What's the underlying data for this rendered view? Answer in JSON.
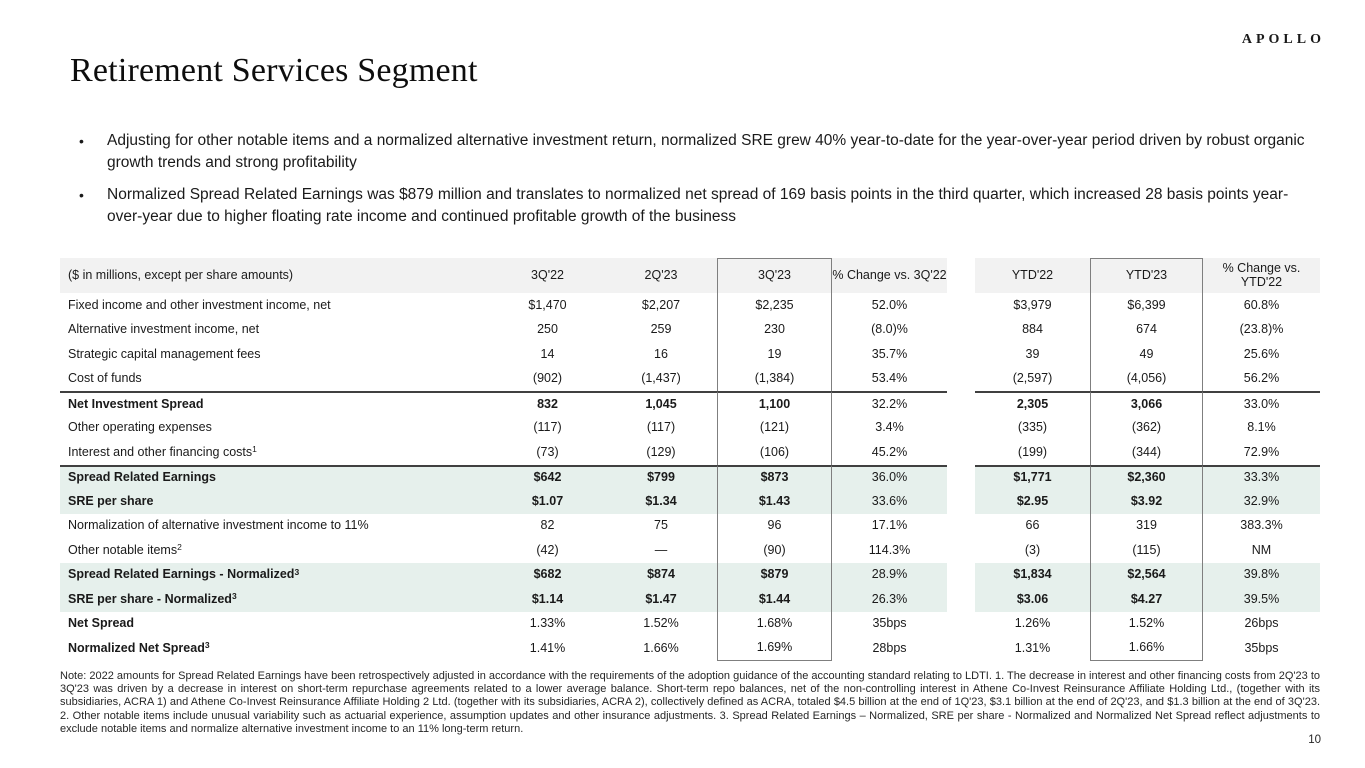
{
  "logo": "APOLLO",
  "title": "Retirement Services Segment",
  "bullet_char": "•",
  "bullets": [
    "Adjusting for other notable items and a normalized alternative investment return, normalized SRE grew 40% year-to-date for the year-over-year period driven by robust organic growth trends and strong profitability",
    "Normalized Spread Related Earnings was $879 million and translates to normalized net spread of 169 basis points in the third quarter, which increased 28 basis points year-over-year due to higher floating rate income and continued profitable growth of the business"
  ],
  "table": {
    "caption": "($ in millions, except per share amounts)",
    "columns": [
      "3Q'22",
      "2Q'23",
      "3Q'23",
      "% Change vs. 3Q'22",
      "YTD'22",
      "YTD'23",
      "% Change vs. YTD'22"
    ],
    "rows": [
      {
        "label": "Fixed income and other investment income, net",
        "sup": "",
        "label_bold": false,
        "values_bold": false,
        "highlight": false,
        "rule": false,
        "values": [
          "$1,470",
          "$2,207",
          "$2,235",
          "52.0%",
          "$3,979",
          "$6,399",
          "60.8%"
        ]
      },
      {
        "label": "Alternative investment income, net",
        "sup": "",
        "label_bold": false,
        "values_bold": false,
        "highlight": false,
        "rule": false,
        "values": [
          "250",
          "259",
          "230",
          "(8.0)%",
          "884",
          "674",
          "(23.8)%"
        ]
      },
      {
        "label": "Strategic capital management fees",
        "sup": "",
        "label_bold": false,
        "values_bold": false,
        "highlight": false,
        "rule": false,
        "values": [
          "14",
          "16",
          "19",
          "35.7%",
          "39",
          "49",
          "25.6%"
        ]
      },
      {
        "label": "Cost of funds",
        "sup": "",
        "label_bold": false,
        "values_bold": false,
        "highlight": false,
        "rule": false,
        "values": [
          "(902)",
          "(1,437)",
          "(1,384)",
          "53.4%",
          "(2,597)",
          "(4,056)",
          "56.2%"
        ]
      },
      {
        "label": "Net Investment Spread",
        "sup": "",
        "label_bold": true,
        "values_bold": true,
        "highlight": false,
        "rule": true,
        "values": [
          "832",
          "1,045",
          "1,100",
          "32.2%",
          "2,305",
          "3,066",
          "33.0%"
        ]
      },
      {
        "label": "Other operating expenses",
        "sup": "",
        "label_bold": false,
        "values_bold": false,
        "highlight": false,
        "rule": false,
        "values": [
          "(117)",
          "(117)",
          "(121)",
          "3.4%",
          "(335)",
          "(362)",
          "8.1%"
        ]
      },
      {
        "label": "Interest and other financing costs",
        "sup": "1",
        "label_bold": false,
        "values_bold": false,
        "highlight": false,
        "rule": false,
        "values": [
          "(73)",
          "(129)",
          "(106)",
          "45.2%",
          "(199)",
          "(344)",
          "72.9%"
        ]
      },
      {
        "label": "Spread Related Earnings",
        "sup": "",
        "label_bold": true,
        "values_bold": true,
        "highlight": true,
        "rule": true,
        "values": [
          "$642",
          "$799",
          "$873",
          "36.0%",
          "$1,771",
          "$2,360",
          "33.3%"
        ]
      },
      {
        "label": "SRE per share",
        "sup": "",
        "label_bold": true,
        "values_bold": true,
        "highlight": true,
        "rule": false,
        "values": [
          "$1.07",
          "$1.34",
          "$1.43",
          "33.6%",
          "$2.95",
          "$3.92",
          "32.9%"
        ]
      },
      {
        "label": "Normalization of alternative investment income to 11%",
        "sup": "",
        "label_bold": false,
        "values_bold": false,
        "highlight": false,
        "rule": false,
        "values": [
          "82",
          "75",
          "96",
          "17.1%",
          "66",
          "319",
          "383.3%"
        ]
      },
      {
        "label": "Other notable items",
        "sup": "2",
        "label_bold": false,
        "values_bold": false,
        "highlight": false,
        "rule": false,
        "values": [
          "(42)",
          "—",
          "(90)",
          "114.3%",
          "(3)",
          "(115)",
          "NM"
        ]
      },
      {
        "label": "Spread Related Earnings - Normalized",
        "sup": "3",
        "label_bold": true,
        "values_bold": true,
        "highlight": true,
        "rule": false,
        "values": [
          "$682",
          "$874",
          "$879",
          "28.9%",
          "$1,834",
          "$2,564",
          "39.8%"
        ]
      },
      {
        "label": "SRE per share - Normalized",
        "sup": "3",
        "label_bold": true,
        "values_bold": true,
        "highlight": true,
        "rule": false,
        "values": [
          "$1.14",
          "$1.47",
          "$1.44",
          "26.3%",
          "$3.06",
          "$4.27",
          "39.5%"
        ]
      },
      {
        "label": "Net Spread",
        "sup": "",
        "label_bold": true,
        "values_bold": false,
        "highlight": false,
        "rule": false,
        "values": [
          "1.33%",
          "1.52%",
          "1.68%",
          "35bps",
          "1.26%",
          "1.52%",
          "26bps"
        ]
      },
      {
        "label": "Normalized Net Spread",
        "sup": "3",
        "label_bold": true,
        "values_bold": false,
        "highlight": false,
        "rule": false,
        "values": [
          "1.41%",
          "1.66%",
          "1.69%",
          "28bps",
          "1.31%",
          "1.66%",
          "35bps"
        ]
      }
    ]
  },
  "footnote": "Note: 2022 amounts for Spread Related Earnings have been retrospectively adjusted in accordance with the requirements of the adoption guidance of the accounting standard relating to LDTI. 1. The decrease in interest and other financing costs from 2Q'23 to 3Q'23 was driven by a decrease in interest on short-term repurchase agreements related to a lower average balance. Short-term repo balances, net of the non-controlling interest in Athene Co-Invest Reinsurance Affiliate Holding Ltd., (together with its subsidiaries, ACRA 1) and Athene Co-Invest Reinsurance Affiliate Holding 2 Ltd. (together with its subsidiaries, ACRA 2), collectively defined as ACRA, totaled $4.5 billion at the end of 1Q'23, $3.1 billion at the end of 2Q'23, and $1.3 billion at the end of 3Q'23. 2. Other notable items include unusual variability such as actuarial experience, assumption updates and other insurance adjustments. 3. Spread Related Earnings – Normalized, SRE per share - Normalized and Normalized Net Spread reflect adjustments to exclude notable items and normalize alternative investment income to an 11% long-term return.",
  "page_number": "10",
  "colors": {
    "highlight_row_bg": "#e6f0ec",
    "header_row_bg": "#f2f2f2",
    "rule_line": "#404040",
    "box_border": "#7f7f7f"
  }
}
